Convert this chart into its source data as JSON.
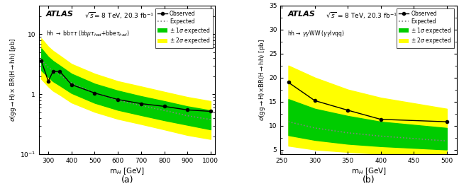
{
  "panel_a": {
    "x_obs": [
      270,
      300,
      320,
      350,
      400,
      500,
      600,
      700,
      800,
      900,
      1000
    ],
    "y_obs": [
      3.6,
      1.65,
      2.4,
      2.4,
      1.45,
      1.05,
      0.82,
      0.7,
      0.63,
      0.55,
      0.52
    ],
    "x_exp": [
      270,
      300,
      320,
      350,
      400,
      500,
      600,
      700,
      800,
      900,
      1000
    ],
    "y_exp": [
      3.8,
      2.8,
      2.5,
      2.1,
      1.55,
      1.05,
      0.8,
      0.65,
      0.54,
      0.44,
      0.38
    ],
    "x_band": [
      270,
      300,
      320,
      350,
      400,
      500,
      600,
      700,
      800,
      900,
      1000
    ],
    "y_1sig_up": [
      5.8,
      4.2,
      3.6,
      3.0,
      2.2,
      1.5,
      1.15,
      0.93,
      0.77,
      0.63,
      0.54
    ],
    "y_1sig_dn": [
      2.5,
      1.95,
      1.65,
      1.4,
      1.05,
      0.72,
      0.55,
      0.45,
      0.37,
      0.31,
      0.26
    ],
    "y_2sig_up": [
      8.5,
      6.2,
      5.3,
      4.4,
      3.2,
      2.2,
      1.65,
      1.35,
      1.1,
      0.9,
      0.77
    ],
    "y_2sig_dn": [
      1.8,
      1.35,
      1.15,
      0.98,
      0.73,
      0.51,
      0.39,
      0.32,
      0.26,
      0.21,
      0.18
    ],
    "xlabel": "m$_{H}$ [GeV]",
    "ylabel": "$\\sigma$(gg$\\rightarrow$H)$\\times$ BR(H$\\rightarrow$hh) [pb]",
    "atlas_text": "ATLAS",
    "energy_text": " $\\sqrt{s}$= 8 TeV, 20.3 fb$^{-1}$",
    "channel_text": "hh $\\rightarrow$ bb$\\tau\\tau$ (bb$\\mu\\tau_{had}$+bbe$\\tau_{had}$)",
    "xlim": [
      260,
      1020
    ],
    "ylim_log": [
      0.1,
      30
    ],
    "label_a": "(a)",
    "color_1sig": "#00cc00",
    "color_2sig": "#ffff00",
    "color_obs": "black",
    "color_exp": "black"
  },
  "panel_b": {
    "x_obs": [
      260,
      300,
      350,
      400,
      500
    ],
    "y_obs": [
      19.0,
      15.2,
      13.2,
      11.3,
      10.8
    ],
    "x_exp": [
      260,
      300,
      350,
      400,
      500
    ],
    "y_exp": [
      10.8,
      9.5,
      8.5,
      7.8,
      6.8
    ],
    "x_band": [
      260,
      300,
      350,
      400,
      500
    ],
    "y_1sig_up": [
      15.5,
      13.5,
      12.0,
      10.8,
      9.5
    ],
    "y_1sig_dn": [
      8.0,
      7.0,
      6.2,
      5.7,
      5.0
    ],
    "y_2sig_up": [
      22.5,
      20.0,
      17.5,
      15.8,
      13.5
    ],
    "y_2sig_dn": [
      5.8,
      5.0,
      4.5,
      4.1,
      3.6
    ],
    "xlabel": "m$_{H}$ [GeV]",
    "ylabel": "$\\sigma$(gg$\\rightarrow$H)$\\times$BR(H$\\rightarrow$hh) [pb]",
    "atlas_text": "ATLAS",
    "energy_text": " $\\sqrt{s}$ = 8 TeV, 20.3 fb$^{-1}$",
    "channel_text": "hh$\\rightarrow$ $\\gamma\\gamma$WW ($\\gamma\\gamma$lvqq)",
    "xlim": [
      248,
      515
    ],
    "ylim": [
      4,
      35
    ],
    "yticks": [
      5,
      10,
      15,
      20,
      25,
      30,
      35
    ],
    "label_b": "(b)",
    "color_1sig": "#00cc00",
    "color_2sig": "#ffff00",
    "color_obs": "black",
    "color_exp": "black"
  }
}
